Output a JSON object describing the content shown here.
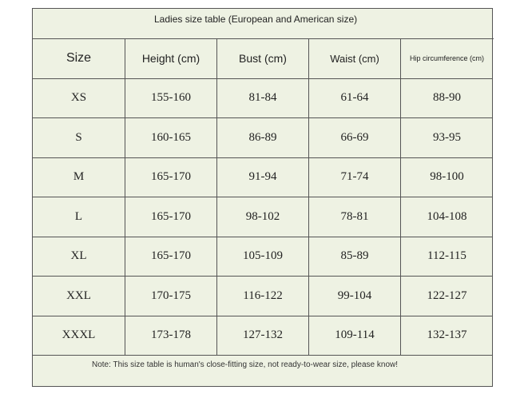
{
  "header": {
    "title": "Ladies size table (European and American size)"
  },
  "table": {
    "columns": [
      "Size",
      "Height (cm)",
      "Bust (cm)",
      "Waist (cm)",
      "Hip circumference (cm)"
    ],
    "rows": [
      [
        "XS",
        "155-160",
        "81-84",
        "61-64",
        "88-90"
      ],
      [
        "S",
        "160-165",
        "86-89",
        "66-69",
        "93-95"
      ],
      [
        "M",
        "165-170",
        "91-94",
        "71-74",
        "98-100"
      ],
      [
        "L",
        "165-170",
        "98-102",
        "78-81",
        "104-108"
      ],
      [
        "XL",
        "165-170",
        "105-109",
        "85-89",
        "112-115"
      ],
      [
        "XXL",
        "170-175",
        "116-122",
        "99-104",
        "122-127"
      ],
      [
        "XXXL",
        "173-178",
        "127-132",
        "109-114",
        "132-137"
      ]
    ]
  },
  "note": "Note: This size table is human's close-fitting size, not ready-to-wear size, please know!"
}
